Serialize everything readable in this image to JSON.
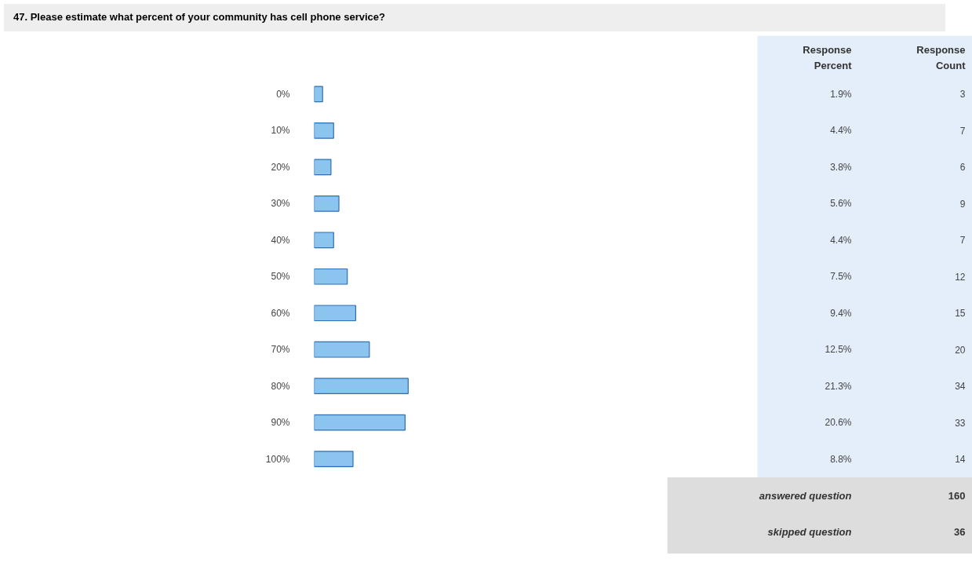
{
  "chart_data": {
    "type": "bar",
    "orientation": "horizontal",
    "title": "47. Please estimate what percent of your community has cell phone service?",
    "categories": [
      "0%",
      "10%",
      "20%",
      "30%",
      "40%",
      "50%",
      "60%",
      "70%",
      "80%",
      "90%",
      "100%"
    ],
    "values": [
      1.9,
      4.4,
      3.8,
      5.6,
      4.4,
      7.5,
      9.4,
      12.5,
      21.3,
      20.6,
      8.8
    ],
    "value_labels": [
      "1.9%",
      "4.4%",
      "3.8%",
      "5.6%",
      "4.4%",
      "7.5%",
      "9.4%",
      "12.5%",
      "21.3%",
      "20.6%",
      "8.8%"
    ],
    "color": "#8cc4f0",
    "xlim": [
      0,
      80
    ],
    "tick_labels": "y",
    "grid": false,
    "annotations": [
      "Response Percent",
      "Response Count",
      "answered question",
      "160",
      "skipped question",
      "36",
      "3",
      "7",
      "6",
      "9",
      "7",
      "12",
      "15",
      "20",
      "34",
      "33",
      "14"
    ]
  }
}
